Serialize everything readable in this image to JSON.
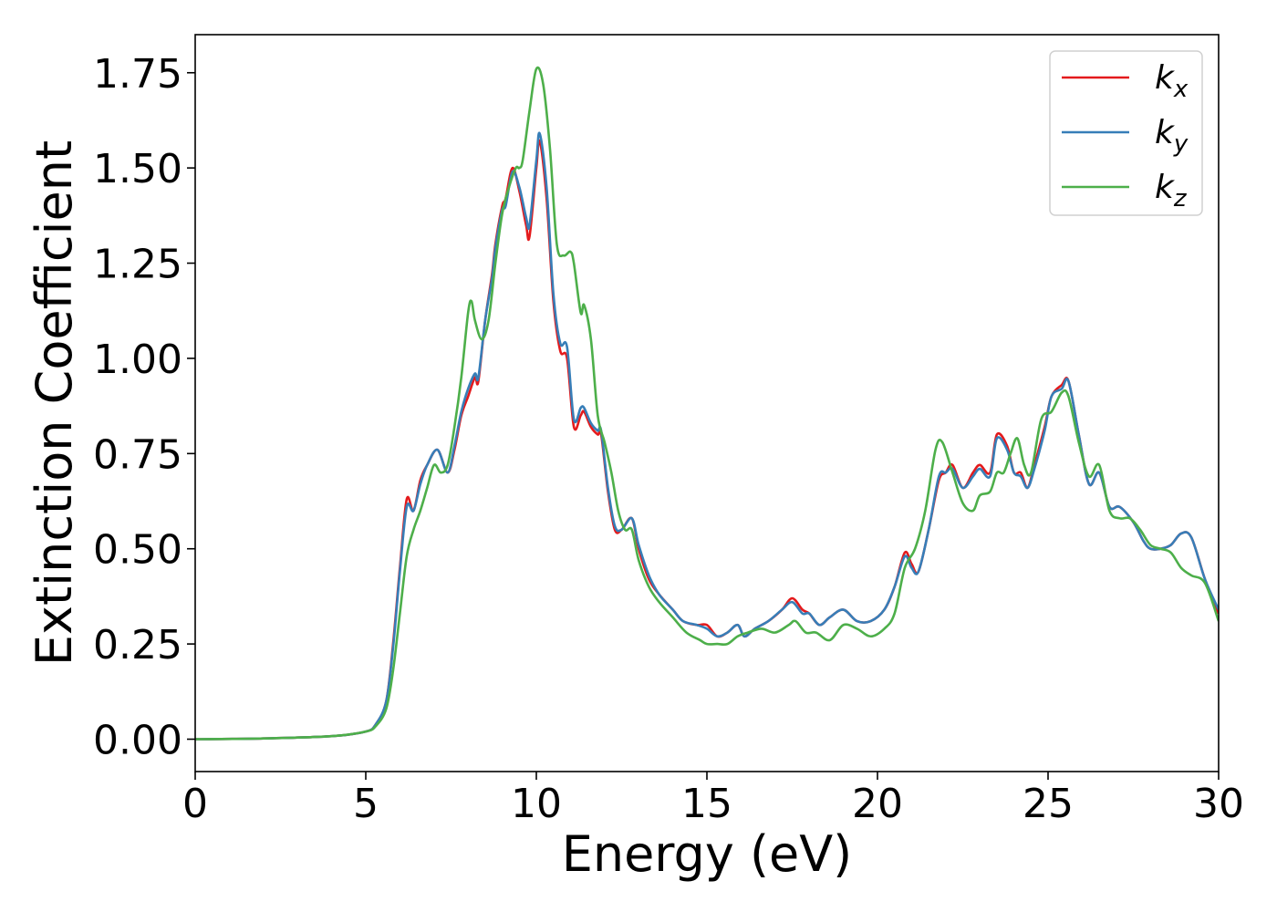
{
  "chart_data": {
    "type": "line",
    "title": "",
    "xlabel": "Energy (eV)",
    "ylabel": "Extinction Coefficient",
    "xlim": [
      0,
      30
    ],
    "ylim": [
      -0.085,
      1.85
    ],
    "xticks": [
      0,
      5,
      10,
      15,
      20,
      25,
      30
    ],
    "xtick_labels": [
      "0",
      "5",
      "10",
      "15",
      "20",
      "25",
      "30"
    ],
    "yticks": [
      0.0,
      0.25,
      0.5,
      0.75,
      1.0,
      1.25,
      1.5,
      1.75
    ],
    "ytick_labels": [
      "0.00",
      "0.25",
      "0.50",
      "0.75",
      "1.00",
      "1.25",
      "1.50",
      "1.75"
    ],
    "grid": false,
    "legend_position": "top-right",
    "series": [
      {
        "name": "k_x",
        "label_main": "k",
        "label_sub": "x",
        "color": "#e41a1c",
        "x": [
          0,
          2,
          4,
          5,
          5.3,
          5.6,
          5.8,
          6.0,
          6.2,
          6.4,
          6.6,
          6.8,
          7.1,
          7.4,
          7.6,
          7.8,
          8.0,
          8.2,
          8.3,
          8.5,
          8.7,
          8.8,
          9.0,
          9.1,
          9.3,
          9.5,
          9.7,
          9.8,
          10.0,
          10.1,
          10.3,
          10.5,
          10.7,
          10.9,
          11.1,
          11.3,
          11.4,
          11.6,
          11.8,
          11.9,
          12.1,
          12.3,
          12.5,
          12.8,
          13.0,
          13.3,
          13.6,
          14.0,
          14.3,
          14.7,
          15.0,
          15.3,
          15.6,
          15.9,
          16.1,
          16.4,
          16.8,
          17.2,
          17.5,
          17.8,
          18.0,
          18.3,
          18.6,
          19.0,
          19.4,
          19.8,
          20.2,
          20.5,
          20.8,
          21.0,
          21.2,
          21.5,
          21.8,
          22.0,
          22.2,
          22.5,
          22.8,
          23.0,
          23.3,
          23.5,
          23.8,
          24.0,
          24.2,
          24.4,
          24.6,
          24.9,
          25.1,
          25.4,
          25.6,
          25.9,
          26.2,
          26.5,
          26.8,
          27.1,
          27.5,
          27.8,
          28.0,
          28.3,
          28.6,
          28.9,
          29.2,
          29.6,
          30.0
        ],
        "y": [
          0.0,
          0.002,
          0.008,
          0.02,
          0.04,
          0.1,
          0.25,
          0.45,
          0.63,
          0.6,
          0.68,
          0.72,
          0.76,
          0.7,
          0.76,
          0.85,
          0.9,
          0.95,
          0.94,
          1.1,
          1.22,
          1.3,
          1.4,
          1.42,
          1.5,
          1.44,
          1.35,
          1.32,
          1.5,
          1.57,
          1.42,
          1.15,
          1.02,
          1.0,
          0.82,
          0.85,
          0.86,
          0.82,
          0.8,
          0.8,
          0.65,
          0.55,
          0.55,
          0.58,
          0.5,
          0.42,
          0.38,
          0.34,
          0.31,
          0.3,
          0.3,
          0.27,
          0.28,
          0.3,
          0.27,
          0.29,
          0.31,
          0.34,
          0.37,
          0.34,
          0.33,
          0.3,
          0.32,
          0.34,
          0.31,
          0.31,
          0.34,
          0.4,
          0.49,
          0.46,
          0.44,
          0.55,
          0.68,
          0.7,
          0.72,
          0.66,
          0.7,
          0.72,
          0.7,
          0.8,
          0.77,
          0.7,
          0.7,
          0.66,
          0.72,
          0.82,
          0.9,
          0.93,
          0.94,
          0.8,
          0.67,
          0.7,
          0.61,
          0.61,
          0.57,
          0.52,
          0.5,
          0.5,
          0.51,
          0.54,
          0.53,
          0.42,
          0.33
        ]
      },
      {
        "name": "k_y",
        "label_main": "k",
        "label_sub": "y",
        "color": "#377eb8",
        "x": [
          0,
          2,
          4,
          5,
          5.3,
          5.6,
          5.8,
          6.0,
          6.2,
          6.4,
          6.6,
          6.8,
          7.1,
          7.4,
          7.6,
          7.8,
          8.0,
          8.2,
          8.3,
          8.5,
          8.7,
          8.8,
          9.0,
          9.1,
          9.3,
          9.5,
          9.7,
          9.8,
          10.0,
          10.1,
          10.3,
          10.5,
          10.7,
          10.9,
          11.1,
          11.3,
          11.4,
          11.6,
          11.8,
          11.9,
          12.1,
          12.3,
          12.5,
          12.8,
          13.0,
          13.3,
          13.6,
          14.0,
          14.3,
          14.7,
          15.0,
          15.3,
          15.6,
          15.9,
          16.1,
          16.4,
          16.8,
          17.2,
          17.5,
          17.8,
          18.0,
          18.3,
          18.6,
          19.0,
          19.4,
          19.8,
          20.2,
          20.5,
          20.8,
          21.0,
          21.2,
          21.5,
          21.8,
          22.0,
          22.2,
          22.5,
          22.8,
          23.0,
          23.3,
          23.5,
          23.8,
          24.0,
          24.2,
          24.4,
          24.6,
          24.9,
          25.1,
          25.4,
          25.6,
          25.9,
          26.2,
          26.5,
          26.8,
          27.1,
          27.5,
          27.8,
          28.0,
          28.3,
          28.6,
          28.9,
          29.2,
          29.6,
          30.0
        ],
        "y": [
          0.0,
          0.002,
          0.008,
          0.02,
          0.04,
          0.1,
          0.24,
          0.44,
          0.61,
          0.6,
          0.67,
          0.72,
          0.76,
          0.7,
          0.77,
          0.86,
          0.92,
          0.96,
          0.95,
          1.1,
          1.21,
          1.29,
          1.39,
          1.4,
          1.49,
          1.45,
          1.37,
          1.35,
          1.52,
          1.59,
          1.45,
          1.17,
          1.04,
          1.03,
          0.84,
          0.87,
          0.87,
          0.83,
          0.81,
          0.81,
          0.66,
          0.56,
          0.55,
          0.58,
          0.51,
          0.43,
          0.38,
          0.34,
          0.31,
          0.3,
          0.29,
          0.27,
          0.28,
          0.3,
          0.27,
          0.29,
          0.31,
          0.34,
          0.36,
          0.33,
          0.33,
          0.3,
          0.32,
          0.34,
          0.31,
          0.31,
          0.34,
          0.4,
          0.48,
          0.45,
          0.44,
          0.55,
          0.69,
          0.7,
          0.71,
          0.66,
          0.69,
          0.71,
          0.69,
          0.79,
          0.76,
          0.7,
          0.69,
          0.66,
          0.71,
          0.81,
          0.9,
          0.92,
          0.94,
          0.8,
          0.67,
          0.7,
          0.61,
          0.61,
          0.57,
          0.52,
          0.5,
          0.5,
          0.51,
          0.54,
          0.53,
          0.42,
          0.34
        ]
      },
      {
        "name": "k_z",
        "label_main": "k",
        "label_sub": "z",
        "color": "#4daf4a",
        "x": [
          0,
          2,
          4,
          5,
          5.3,
          5.6,
          5.8,
          6.0,
          6.2,
          6.4,
          6.6,
          6.8,
          7.0,
          7.2,
          7.4,
          7.6,
          7.8,
          8.0,
          8.1,
          8.2,
          8.4,
          8.6,
          8.8,
          9.0,
          9.2,
          9.4,
          9.5,
          9.6,
          9.8,
          10.0,
          10.2,
          10.4,
          10.6,
          10.8,
          11.0,
          11.1,
          11.3,
          11.4,
          11.6,
          11.8,
          12.0,
          12.2,
          12.4,
          12.6,
          12.8,
          13.0,
          13.3,
          13.6,
          14.0,
          14.4,
          14.8,
          15.0,
          15.3,
          15.6,
          15.9,
          16.2,
          16.6,
          17.0,
          17.4,
          17.6,
          17.9,
          18.2,
          18.6,
          19.0,
          19.4,
          19.8,
          20.2,
          20.5,
          20.8,
          21.1,
          21.4,
          21.7,
          21.9,
          22.2,
          22.5,
          22.8,
          23.0,
          23.3,
          23.5,
          23.7,
          23.9,
          24.1,
          24.3,
          24.5,
          24.8,
          25.1,
          25.4,
          25.6,
          25.9,
          26.2,
          26.5,
          26.8,
          27.1,
          27.4,
          27.7,
          28.0,
          28.3,
          28.6,
          28.9,
          29.2,
          29.6,
          30.0
        ],
        "y": [
          0.0,
          0.002,
          0.008,
          0.02,
          0.035,
          0.08,
          0.18,
          0.33,
          0.48,
          0.55,
          0.6,
          0.66,
          0.72,
          0.7,
          0.72,
          0.82,
          0.95,
          1.12,
          1.15,
          1.1,
          1.05,
          1.1,
          1.25,
          1.38,
          1.45,
          1.5,
          1.5,
          1.52,
          1.65,
          1.76,
          1.72,
          1.55,
          1.3,
          1.27,
          1.28,
          1.25,
          1.12,
          1.14,
          1.05,
          0.85,
          0.78,
          0.7,
          0.6,
          0.55,
          0.55,
          0.47,
          0.4,
          0.36,
          0.32,
          0.28,
          0.26,
          0.25,
          0.25,
          0.25,
          0.27,
          0.28,
          0.29,
          0.28,
          0.3,
          0.31,
          0.28,
          0.28,
          0.26,
          0.3,
          0.29,
          0.27,
          0.29,
          0.33,
          0.45,
          0.5,
          0.6,
          0.76,
          0.78,
          0.7,
          0.62,
          0.6,
          0.64,
          0.65,
          0.7,
          0.7,
          0.75,
          0.79,
          0.72,
          0.7,
          0.84,
          0.86,
          0.91,
          0.9,
          0.78,
          0.69,
          0.72,
          0.6,
          0.58,
          0.58,
          0.55,
          0.51,
          0.5,
          0.49,
          0.45,
          0.43,
          0.41,
          0.31
        ]
      }
    ]
  }
}
